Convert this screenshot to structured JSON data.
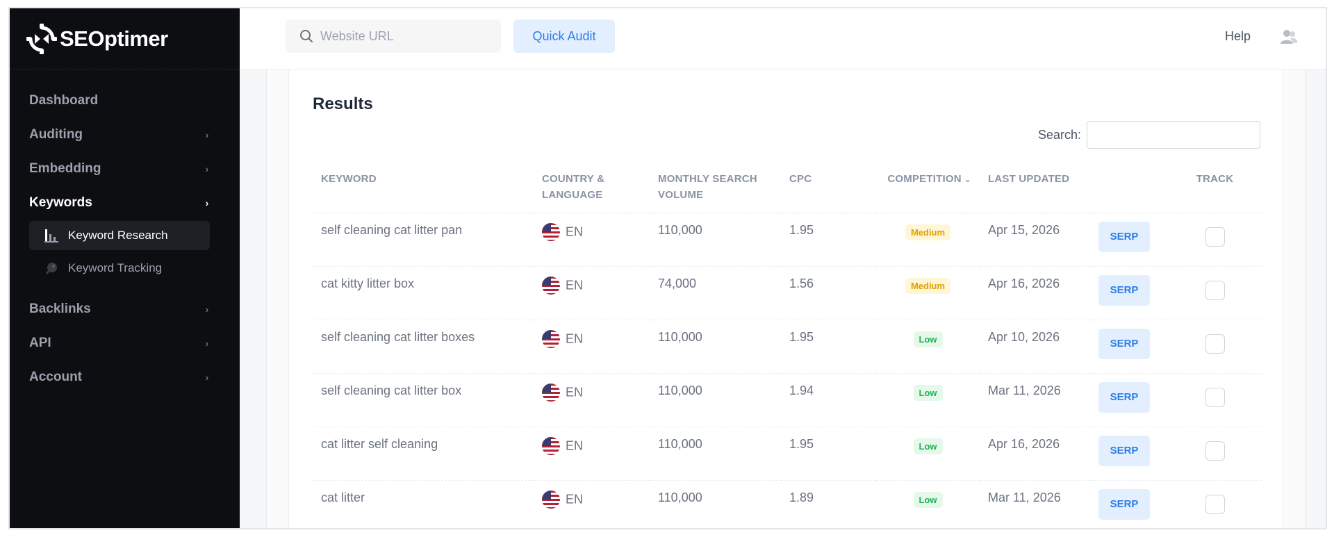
{
  "app": {
    "logo_text": "SEOptimer"
  },
  "sidebar": {
    "items": [
      {
        "label": "Dashboard",
        "has_chevron": false
      },
      {
        "label": "Auditing",
        "has_chevron": true
      },
      {
        "label": "Embedding",
        "has_chevron": true
      },
      {
        "label": "Keywords",
        "has_chevron": true,
        "active": true
      },
      {
        "label": "Backlinks",
        "has_chevron": true
      },
      {
        "label": "API",
        "has_chevron": true
      },
      {
        "label": "Account",
        "has_chevron": true
      }
    ],
    "keywords_sub": [
      {
        "label": "Keyword Research",
        "icon": "bar-chart-icon",
        "active": true
      },
      {
        "label": "Keyword Tracking",
        "icon": "satellite-dish-icon",
        "active": false
      }
    ]
  },
  "topbar": {
    "url_placeholder": "Website URL",
    "url_value": "",
    "quick_audit_label": "Quick Audit",
    "help_label": "Help"
  },
  "results": {
    "title": "Results",
    "search_label": "Search:",
    "search_value": "",
    "columns": {
      "keyword": "KEYWORD",
      "country_line1": "COUNTRY &",
      "country_line2": "LANGUAGE",
      "volume_line1": "MONTHLY SEARCH",
      "volume_line2": "VOLUME",
      "cpc": "CPC",
      "competition": "COMPETITION",
      "last_updated": "LAST UPDATED",
      "track": "TRACK"
    },
    "rows": [
      {
        "keyword": "self cleaning cat litter pan",
        "lang": "EN",
        "volume": "110,000",
        "cpc": "1.95",
        "competition": "Medium",
        "updated": "Apr 15, 2026",
        "serp": "SERP"
      },
      {
        "keyword": "cat kitty litter box",
        "lang": "EN",
        "volume": "74,000",
        "cpc": "1.56",
        "competition": "Medium",
        "updated": "Apr 16, 2026",
        "serp": "SERP"
      },
      {
        "keyword": "self cleaning cat litter boxes",
        "lang": "EN",
        "volume": "110,000",
        "cpc": "1.95",
        "competition": "Low",
        "updated": "Apr 10, 2026",
        "serp": "SERP"
      },
      {
        "keyword": "self cleaning cat litter box",
        "lang": "EN",
        "volume": "110,000",
        "cpc": "1.94",
        "competition": "Low",
        "updated": "Mar 11, 2026",
        "serp": "SERP"
      },
      {
        "keyword": "cat litter self cleaning",
        "lang": "EN",
        "volume": "110,000",
        "cpc": "1.95",
        "competition": "Low",
        "updated": "Apr 16, 2026",
        "serp": "SERP"
      },
      {
        "keyword": "cat litter",
        "lang": "EN",
        "volume": "110,000",
        "cpc": "1.89",
        "competition": "Low",
        "updated": "Mar 11, 2026",
        "serp": "SERP"
      }
    ]
  },
  "colors": {
    "sidebar_bg": "#0d0e12",
    "accent": "#2b7de9",
    "accent_bg": "#e3efff",
    "medium_badge": "#e0a000",
    "low_badge": "#1bb455"
  }
}
